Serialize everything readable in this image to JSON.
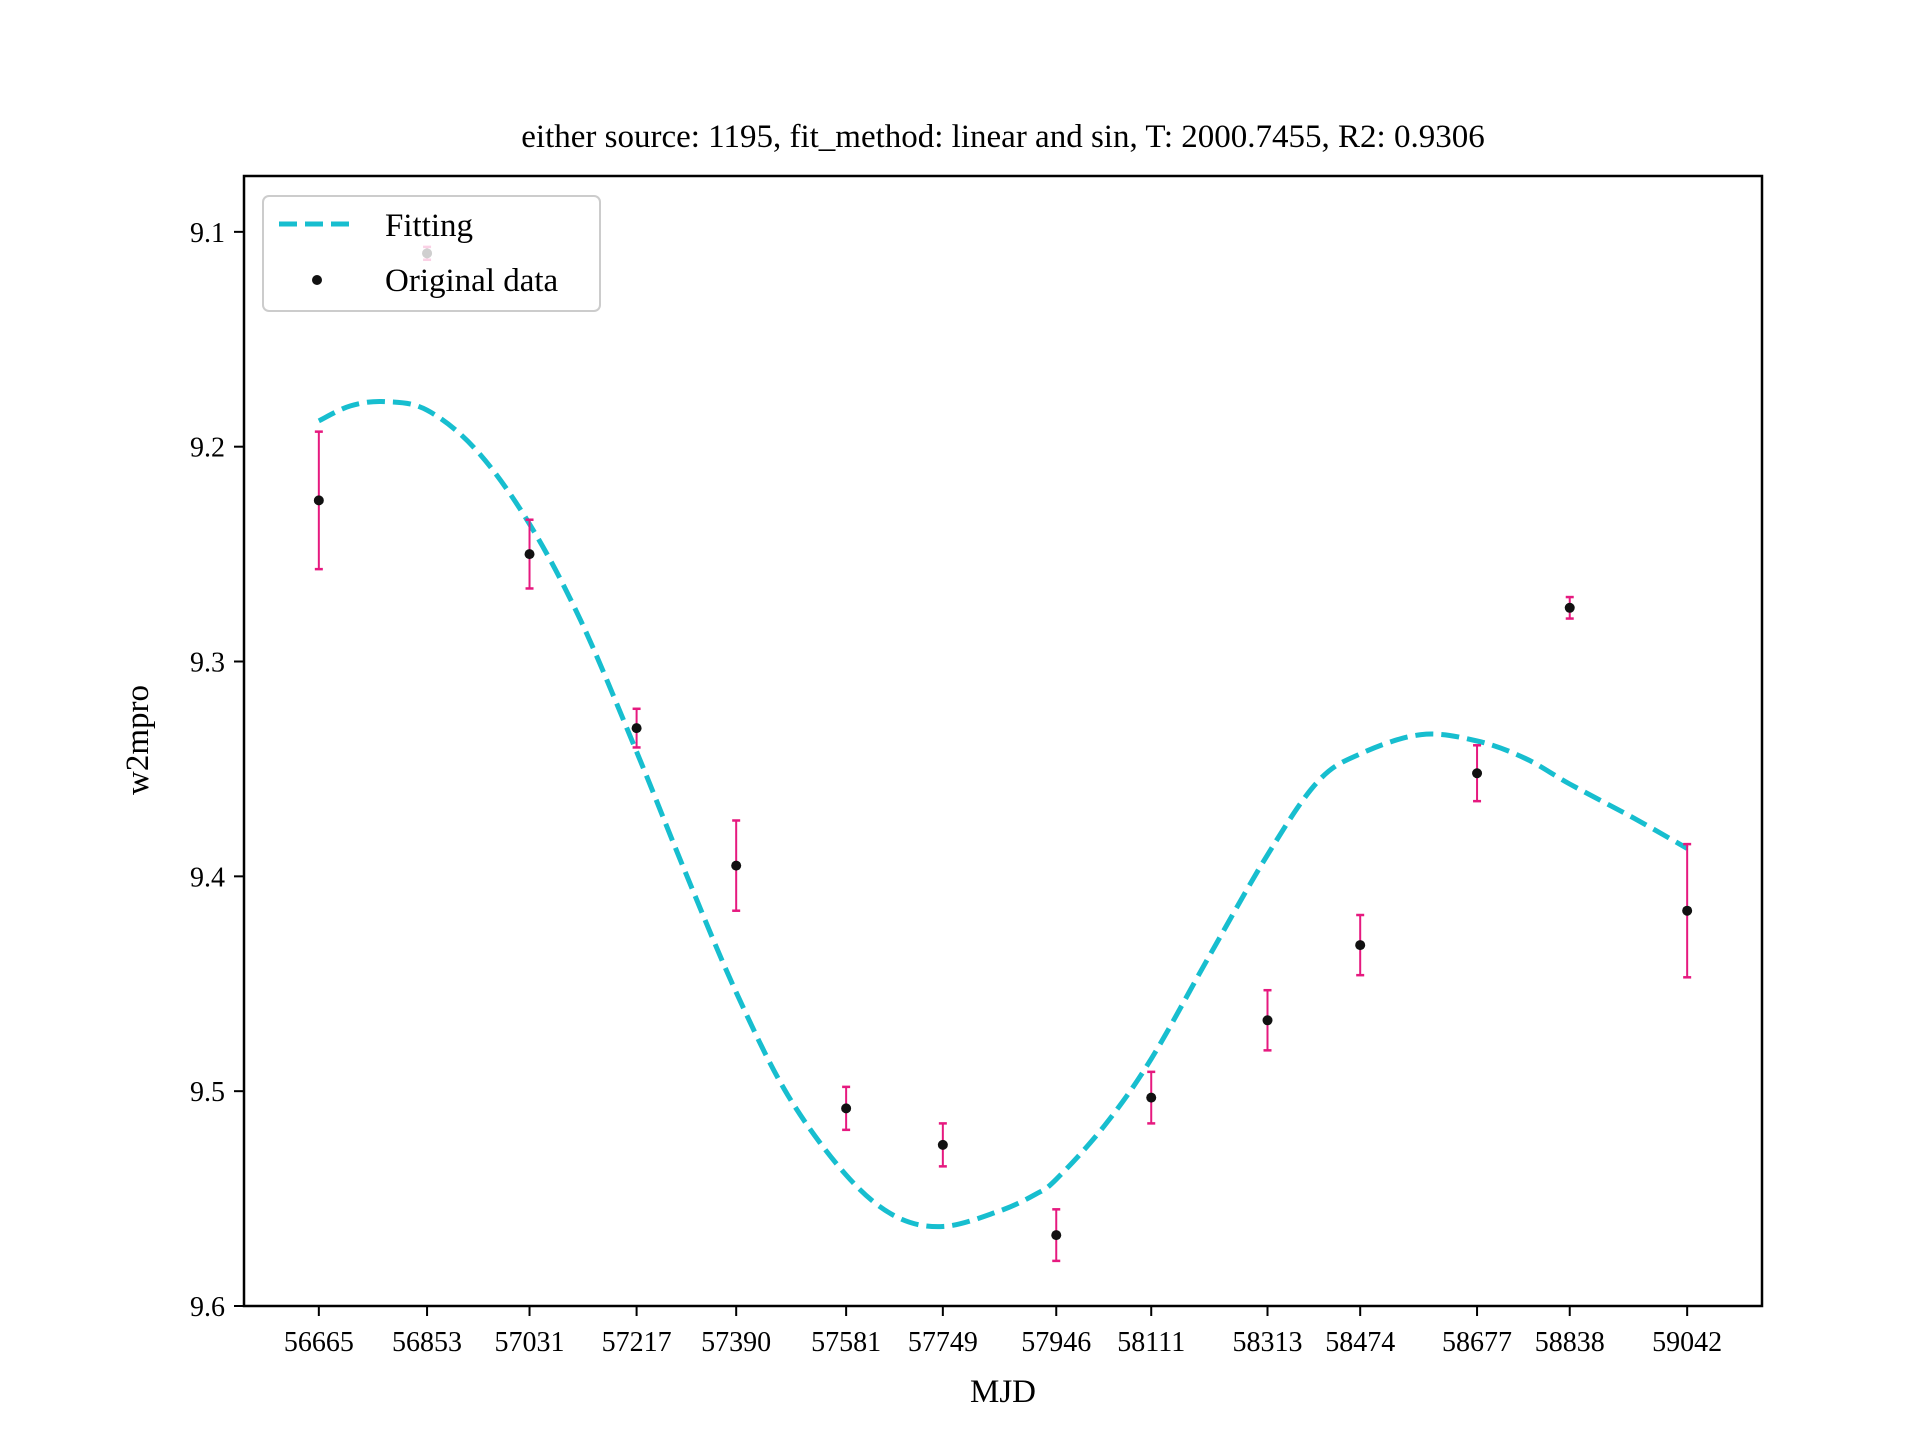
{
  "chart_data": {
    "type": "scatter",
    "title": "either source: 1195,  fit_method: linear and sin,  T: 2000.7455,  R2: 0.9306",
    "xlabel": "MJD",
    "ylabel": "w2mpro",
    "y_inverted": true,
    "xlim": [
      56535,
      59172
    ],
    "ylim": [
      9.6,
      9.074
    ],
    "x_ticks": [
      56665,
      56853,
      57031,
      57217,
      57390,
      57581,
      57749,
      57946,
      58111,
      58313,
      58474,
      58677,
      58838,
      59042
    ],
    "y_ticks": [
      9.1,
      9.2,
      9.3,
      9.4,
      9.5,
      9.6
    ],
    "y_tick_labels": [
      "9.1",
      "9.2",
      "9.3",
      "9.4",
      "9.5",
      "9.6"
    ],
    "grid": false,
    "legend_position": "upper-left",
    "colors": {
      "fit": "#17becf",
      "points": "#111111",
      "errorbars": "#e6197f",
      "axes": "#000000"
    },
    "series": [
      {
        "name": "Fitting",
        "kind": "line",
        "style": "dashed",
        "x": [
          56665,
          56720,
          56780,
          56853,
          56940,
          57031,
          57120,
          57217,
          57300,
          57390,
          57480,
          57581,
          57665,
          57749,
          57845,
          57910,
          57946,
          58030,
          58111,
          58210,
          58313,
          58400,
          58474,
          58580,
          58677,
          58760,
          58838,
          58950,
          59042
        ],
        "y": [
          9.188,
          9.181,
          9.179,
          9.183,
          9.202,
          9.236,
          9.281,
          9.342,
          9.397,
          9.454,
          9.502,
          9.539,
          9.558,
          9.563,
          9.556,
          9.548,
          9.541,
          9.516,
          9.485,
          9.438,
          9.39,
          9.356,
          9.343,
          9.334,
          9.337,
          9.345,
          9.357,
          9.373,
          9.387
        ]
      },
      {
        "name": "Original data",
        "kind": "scatter",
        "x": [
          56665,
          56853,
          57031,
          57217,
          57390,
          57581,
          57749,
          57946,
          58111,
          58313,
          58474,
          58677,
          58838,
          59042
        ],
        "y": [
          9.225,
          9.11,
          9.25,
          9.331,
          9.395,
          9.508,
          9.525,
          9.567,
          9.503,
          9.467,
          9.432,
          9.352,
          9.275,
          9.416
        ],
        "yerr": [
          0.032,
          0.003,
          0.016,
          0.009,
          0.021,
          0.01,
          0.01,
          0.012,
          0.012,
          0.014,
          0.014,
          0.013,
          0.005,
          0.031
        ]
      }
    ]
  }
}
